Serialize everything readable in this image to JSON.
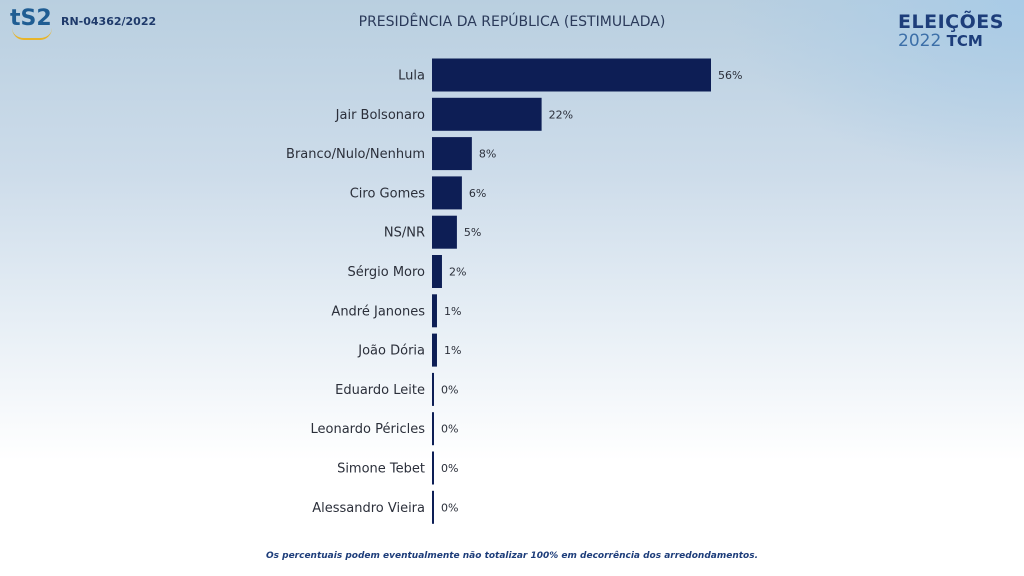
{
  "header": {
    "brand": "tS2",
    "registration": "RN-04362/2022",
    "title": "PRESIDÊNCIA DA REPÚBLICA (ESTIMULADA)",
    "logo_top": "ELEIÇÕES",
    "logo_year": "2022",
    "logo_org": "TCM"
  },
  "chart_data": {
    "type": "bar",
    "orientation": "horizontal",
    "title": "PRESIDÊNCIA DA REPÚBLICA (ESTIMULADA)",
    "categories": [
      "Lula",
      "Jair Bolsonaro",
      "Branco/Nulo/Nenhum",
      "Ciro Gomes",
      "NS/NR",
      "Sérgio Moro",
      "André Janones",
      "João Dória",
      "Eduardo Leite",
      "Leonardo Péricles",
      "Simone Tebet",
      "Alessandro Vieira"
    ],
    "values": [
      56,
      22,
      8,
      6,
      5,
      2,
      1,
      1,
      0,
      0,
      0,
      0
    ],
    "labels": [
      "56%",
      "22%",
      "8%",
      "6%",
      "5%",
      "2%",
      "1%",
      "1%",
      "0%",
      "0%",
      "0%",
      "0%"
    ],
    "bar_color": "#0d1e55",
    "xlim": [
      0,
      56
    ],
    "grid": false
  },
  "footer": {
    "note": "Os percentuais podem eventualmente não totalizar 100% em decorrência dos arredondamentos."
  }
}
